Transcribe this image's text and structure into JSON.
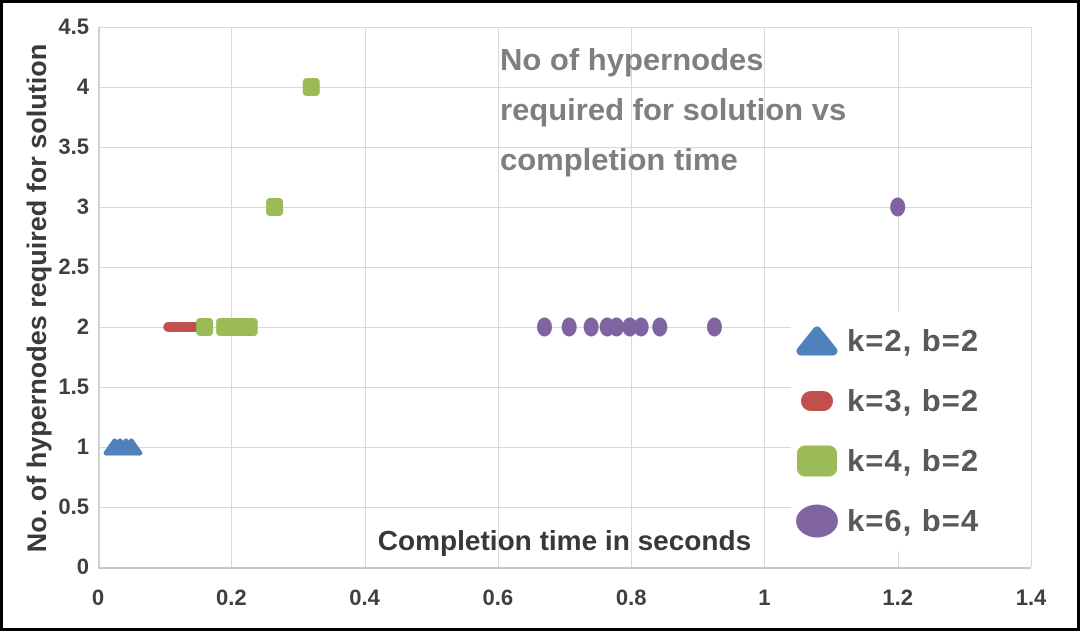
{
  "chart_data": {
    "type": "scatter",
    "title": "No of hypernodes\nrequired for solution vs\ncompletion time",
    "xlabel": "Completion time in seconds",
    "ylabel": "No. of hypernodes required for solution",
    "xlim": [
      0,
      1.4
    ],
    "ylim": [
      0,
      4.5
    ],
    "grid": true,
    "legend_position": "inside-right",
    "x_ticks": {
      "values": [
        0,
        0.2,
        0.4,
        0.6,
        0.8,
        1,
        1.2,
        1.4
      ],
      "labels": [
        "0",
        "0.2",
        "0.4",
        "0.6",
        "0.8",
        "1",
        "1.2",
        "1.4"
      ]
    },
    "y_ticks": {
      "values": [
        0,
        0.5,
        1,
        1.5,
        2,
        2.5,
        3,
        3.5,
        4,
        4.5
      ],
      "labels": [
        "0",
        "0.5",
        "1",
        "1.5",
        "2",
        "2.5",
        "3",
        "3.5",
        "4",
        "4.5"
      ]
    },
    "series": [
      {
        "name": "k=2, b=2",
        "marker": "triangle",
        "color": "#4f81bd",
        "points": [
          [
            0.025,
            1
          ],
          [
            0.033,
            1
          ],
          [
            0.042,
            1
          ],
          [
            0.05,
            1
          ]
        ]
      },
      {
        "name": "k=3, b=2",
        "marker": "pill",
        "color": "#c0504d",
        "points": [
          [
            0.11,
            2
          ],
          [
            0.122,
            2
          ],
          [
            0.134,
            2
          ],
          [
            0.145,
            2
          ]
        ]
      },
      {
        "name": "k=4, b=2",
        "marker": "square",
        "color": "#9bbb59",
        "points": [
          [
            0.16,
            2
          ],
          [
            0.19,
            2
          ],
          [
            0.2,
            2
          ],
          [
            0.213,
            2
          ],
          [
            0.227,
            2
          ],
          [
            0.265,
            3
          ],
          [
            0.32,
            4
          ]
        ]
      },
      {
        "name": "k=6, b=4",
        "marker": "ellipse",
        "color": "#8064a2",
        "points": [
          [
            0.67,
            2
          ],
          [
            0.707,
            2
          ],
          [
            0.74,
            2
          ],
          [
            0.764,
            2
          ],
          [
            0.778,
            2
          ],
          [
            0.798,
            2
          ],
          [
            0.815,
            2
          ],
          [
            0.843,
            2
          ],
          [
            0.925,
            2
          ],
          [
            1.2,
            3
          ]
        ]
      }
    ],
    "colors": {
      "gridline": "#d9d9d9",
      "axis_line": "#c6c6c6",
      "title_text": "#7f7f7f",
      "axis_title_text": "#383838",
      "tick_text": "#3f3f3f",
      "legend_text": "#595959",
      "background": "#ffffff",
      "border": "#000000"
    }
  }
}
